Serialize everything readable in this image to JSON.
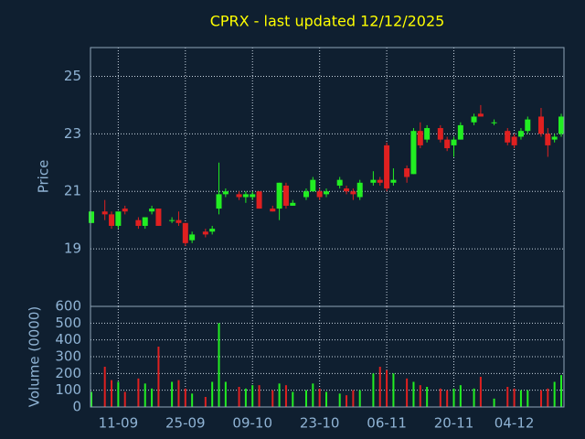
{
  "chart_data": {
    "type": "candlestick",
    "title": "CPRX - last updated 12/12/2025",
    "ylabel": "Price",
    "categories": [
      null,
      null,
      null,
      null,
      "11-09",
      null,
      null,
      null,
      null,
      null,
      null,
      null,
      null,
      null,
      "25-09",
      null,
      null,
      null,
      null,
      null,
      null,
      null,
      null,
      null,
      "09-10",
      null,
      null,
      null,
      null,
      null,
      null,
      null,
      null,
      null,
      "23-10",
      null,
      null,
      null,
      null,
      null,
      null,
      null,
      null,
      null,
      "06-11",
      null,
      null,
      null,
      null,
      null,
      null,
      null,
      null,
      null,
      "20-11",
      null,
      null,
      null,
      null,
      null,
      null,
      null,
      null,
      "04-12",
      null,
      null,
      null,
      null,
      null,
      null,
      null
    ],
    "open": [
      19.9,
      null,
      20.3,
      20.2,
      19.8,
      20.4,
      null,
      20.0,
      19.8,
      20.3,
      20.4,
      null,
      20.0,
      20.0,
      19.9,
      19.3,
      null,
      19.6,
      19.6,
      20.4,
      20.9,
      null,
      20.9,
      20.8,
      20.8,
      21.0,
      null,
      20.4,
      20.4,
      21.2,
      20.5,
      null,
      20.8,
      21.0,
      21.0,
      20.9,
      null,
      21.2,
      21.1,
      21.0,
      20.8,
      null,
      21.3,
      21.4,
      22.6,
      21.3,
      null,
      21.8,
      21.6,
      23.1,
      22.8,
      null,
      23.2,
      22.8,
      22.6,
      22.8,
      null,
      23.4,
      23.7,
      null,
      23.4,
      null,
      23.1,
      22.9,
      22.9,
      23.1,
      null,
      23.6,
      23.0,
      22.8,
      23.0
    ],
    "high": [
      20.3,
      null,
      20.7,
      20.3,
      20.3,
      20.5,
      null,
      20.1,
      20.1,
      20.5,
      20.4,
      null,
      20.1,
      20.3,
      19.9,
      19.6,
      null,
      19.7,
      19.8,
      22.0,
      21.1,
      null,
      21.0,
      21.0,
      21.0,
      21.0,
      null,
      20.5,
      21.3,
      21.3,
      20.7,
      null,
      21.1,
      21.5,
      21.1,
      21.1,
      null,
      21.5,
      21.2,
      21.1,
      21.4,
      null,
      21.7,
      21.5,
      22.7,
      21.8,
      null,
      21.9,
      23.2,
      23.4,
      23.3,
      null,
      23.3,
      22.9,
      22.9,
      23.4,
      null,
      23.7,
      24.0,
      null,
      23.5,
      null,
      23.2,
      23.0,
      23.2,
      23.6,
      null,
      23.9,
      23.2,
      23.0,
      23.7
    ],
    "low": [
      19.9,
      null,
      20.0,
      19.7,
      19.7,
      20.2,
      null,
      19.7,
      19.7,
      20.2,
      19.8,
      null,
      19.9,
      19.8,
      19.1,
      19.2,
      null,
      19.4,
      19.5,
      20.2,
      20.8,
      null,
      20.7,
      20.6,
      20.7,
      20.4,
      null,
      20.3,
      20.0,
      20.4,
      20.5,
      null,
      20.7,
      21.0,
      20.7,
      20.8,
      null,
      21.1,
      20.9,
      20.7,
      20.7,
      null,
      21.2,
      21.2,
      21.0,
      21.2,
      null,
      21.3,
      21.6,
      22.5,
      22.7,
      null,
      22.7,
      22.4,
      22.2,
      22.8,
      null,
      23.3,
      23.6,
      null,
      23.3,
      null,
      22.6,
      22.5,
      22.8,
      23.0,
      null,
      22.9,
      22.2,
      22.7,
      22.9
    ],
    "close": [
      20.3,
      null,
      20.2,
      19.8,
      20.3,
      20.3,
      null,
      19.8,
      20.1,
      20.4,
      19.8,
      null,
      20.0,
      19.9,
      19.2,
      19.5,
      null,
      19.5,
      19.7,
      20.9,
      21.0,
      null,
      20.8,
      20.9,
      20.9,
      20.4,
      null,
      20.3,
      21.3,
      20.5,
      20.6,
      null,
      21.0,
      21.4,
      20.8,
      21.0,
      null,
      21.4,
      21.0,
      20.9,
      21.3,
      null,
      21.4,
      21.3,
      21.1,
      21.4,
      null,
      21.5,
      23.1,
      22.6,
      23.2,
      null,
      22.8,
      22.5,
      22.8,
      23.3,
      null,
      23.6,
      23.6,
      null,
      23.4,
      null,
      22.7,
      22.6,
      23.1,
      23.5,
      null,
      23.0,
      22.6,
      22.9,
      23.6
    ],
    "ylim": [
      17,
      26
    ],
    "yticks": [
      19,
      21,
      23,
      25
    ],
    "volume": {
      "label": "Volume (0000)",
      "values": [
        90,
        null,
        240,
        160,
        150,
        90,
        null,
        170,
        140,
        110,
        360,
        null,
        150,
        160,
        110,
        80,
        null,
        60,
        150,
        500,
        150,
        null,
        120,
        110,
        130,
        130,
        null,
        100,
        140,
        130,
        90,
        null,
        100,
        140,
        110,
        90,
        null,
        80,
        70,
        100,
        100,
        null,
        200,
        240,
        220,
        200,
        null,
        170,
        150,
        130,
        120,
        null,
        110,
        100,
        110,
        130,
        null,
        110,
        180,
        null,
        50,
        null,
        120,
        110,
        100,
        100,
        null,
        100,
        110,
        150,
        190
      ],
      "ylim": [
        0,
        600
      ],
      "yticks": [
        0,
        100,
        200,
        300,
        400,
        500,
        600
      ]
    },
    "colors": {
      "up": "#22ee22",
      "down": "#e02020"
    },
    "grid": true
  }
}
